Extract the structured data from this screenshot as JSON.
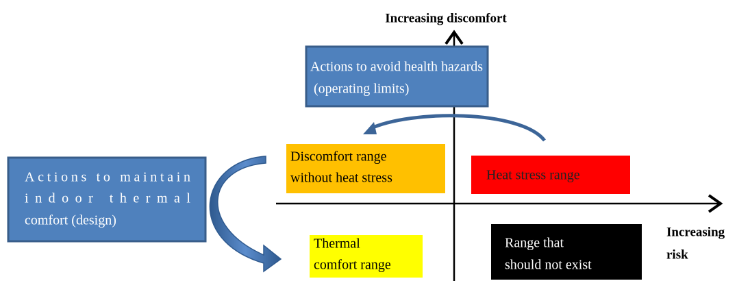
{
  "axes": {
    "vertical_label": "Increasing discomfort",
    "horizontal_label": [
      "Increasing",
      "risk"
    ]
  },
  "boxes": [
    {
      "lines": [
        "Actions to avoid health hazards",
        "(operating limits)"
      ]
    },
    {
      "lines": [
        "Actions to maintain",
        "indoor thermal",
        "comfort (design)"
      ]
    },
    {
      "lines": [
        "Discomfort range",
        "without heat stress"
      ]
    },
    {
      "lines": [
        "Heat stress range"
      ]
    },
    {
      "lines": [
        "Thermal",
        "comfort range"
      ]
    },
    {
      "lines": [
        "Range that",
        "should not exist"
      ]
    }
  ]
}
